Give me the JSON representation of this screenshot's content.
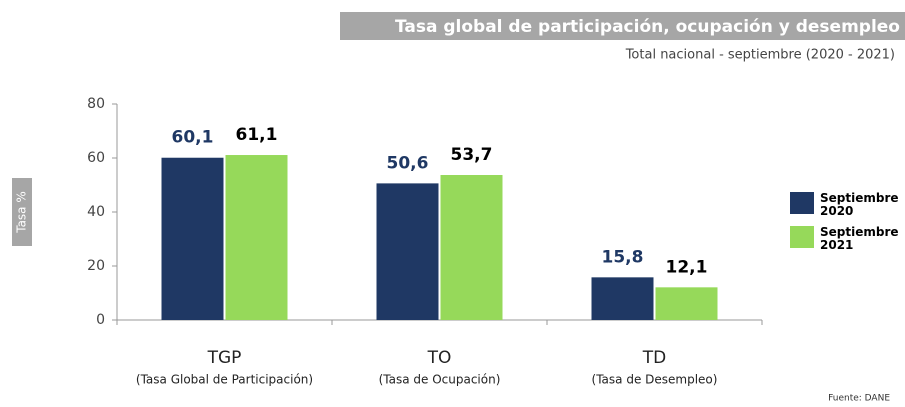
{
  "chart_data": {
    "type": "bar",
    "title": "Tasa global de participación, ocupación y desempleo",
    "subtitle": "Total nacional - septiembre (2020 - 2021)",
    "y_label": "Tasa %",
    "categories": [
      "TGP",
      "TO",
      "TD"
    ],
    "category_descriptions": [
      "(Tasa Global de Participación)",
      "(Tasa de Ocupación)",
      "(Tasa de Desempleo)"
    ],
    "series": [
      {
        "name": "Septiembre 2020",
        "color": "#1f3864",
        "label_color": "#1f3864",
        "values": [
          60.1,
          50.6,
          15.8
        ],
        "value_labels": [
          "60,1",
          "50,6",
          "15,8"
        ]
      },
      {
        "name": "Septiembre 2021",
        "color": "#96d95a",
        "label_color": "#000000",
        "values": [
          61.1,
          53.7,
          12.1
        ],
        "value_labels": [
          "61,1",
          "53,7",
          "12,1"
        ]
      }
    ],
    "ylim": [
      0,
      80
    ],
    "yticks": [
      0,
      20,
      40,
      60,
      80
    ],
    "source": "Fuente: DANE"
  }
}
